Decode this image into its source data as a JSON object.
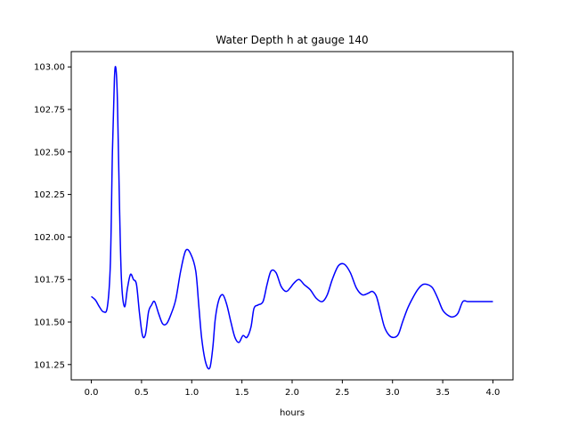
{
  "chart_data": {
    "type": "line",
    "title": "Water Depth h at gauge 140",
    "xlabel": "hours",
    "ylabel": "",
    "xlim": [
      -0.2,
      4.2
    ],
    "ylim": [
      101.16,
      103.09
    ],
    "xticks": [
      0.0,
      0.5,
      1.0,
      1.5,
      2.0,
      2.5,
      3.0,
      3.5,
      4.0
    ],
    "xtick_labels": [
      "0.0",
      "0.5",
      "1.0",
      "1.5",
      "2.0",
      "2.5",
      "3.0",
      "3.5",
      "4.0"
    ],
    "yticks": [
      101.25,
      101.5,
      101.75,
      102.0,
      102.25,
      102.5,
      102.75,
      103.0
    ],
    "ytick_labels": [
      "101.25",
      "101.50",
      "101.75",
      "102.00",
      "102.25",
      "102.50",
      "102.75",
      "103.00"
    ],
    "grid": false,
    "series": [
      {
        "color": "#0000ff",
        "x": [
          0.0,
          0.04,
          0.08,
          0.12,
          0.16,
          0.19,
          0.21,
          0.23,
          0.245,
          0.26,
          0.28,
          0.3,
          0.33,
          0.36,
          0.39,
          0.42,
          0.45,
          0.48,
          0.51,
          0.54,
          0.57,
          0.6,
          0.63,
          0.67,
          0.71,
          0.75,
          0.79,
          0.84,
          0.89,
          0.94,
          0.99,
          1.04,
          1.07,
          1.1,
          1.14,
          1.18,
          1.21,
          1.235,
          1.27,
          1.31,
          1.35,
          1.39,
          1.43,
          1.47,
          1.51,
          1.55,
          1.59,
          1.62,
          1.66,
          1.71,
          1.75,
          1.79,
          1.84,
          1.89,
          1.94,
          1.98,
          2.02,
          2.07,
          2.12,
          2.18,
          2.24,
          2.3,
          2.35,
          2.4,
          2.46,
          2.52,
          2.58,
          2.64,
          2.7,
          2.76,
          2.8,
          2.84,
          2.88,
          2.92,
          2.97,
          3.02,
          3.06,
          3.1,
          3.15,
          3.2,
          3.25,
          3.3,
          3.35,
          3.4,
          3.45,
          3.5,
          3.55,
          3.6,
          3.65,
          3.7,
          3.75,
          3.8,
          3.85,
          3.9,
          3.95,
          4.0
        ],
        "y": [
          101.65,
          101.63,
          101.59,
          101.56,
          101.59,
          101.85,
          102.5,
          102.93,
          102.99,
          102.8,
          102.2,
          101.75,
          101.59,
          101.7,
          101.78,
          101.75,
          101.72,
          101.55,
          101.42,
          101.43,
          101.56,
          101.6,
          101.62,
          101.55,
          101.49,
          101.49,
          101.54,
          101.63,
          101.8,
          101.92,
          101.9,
          101.8,
          101.6,
          101.4,
          101.26,
          101.23,
          101.35,
          101.52,
          101.63,
          101.66,
          101.6,
          101.5,
          101.41,
          101.38,
          101.42,
          101.41,
          101.47,
          101.58,
          101.6,
          101.62,
          101.72,
          101.8,
          101.79,
          101.71,
          101.68,
          101.7,
          101.73,
          101.75,
          101.72,
          101.69,
          101.64,
          101.62,
          101.66,
          101.75,
          101.83,
          101.84,
          101.79,
          101.7,
          101.66,
          101.67,
          101.68,
          101.65,
          101.56,
          101.47,
          101.42,
          101.41,
          101.43,
          101.5,
          101.58,
          101.64,
          101.69,
          101.72,
          101.72,
          101.7,
          101.64,
          101.57,
          101.54,
          101.53,
          101.55,
          101.62,
          101.62,
          101.62,
          101.62,
          101.62,
          101.62,
          101.62
        ]
      }
    ]
  }
}
